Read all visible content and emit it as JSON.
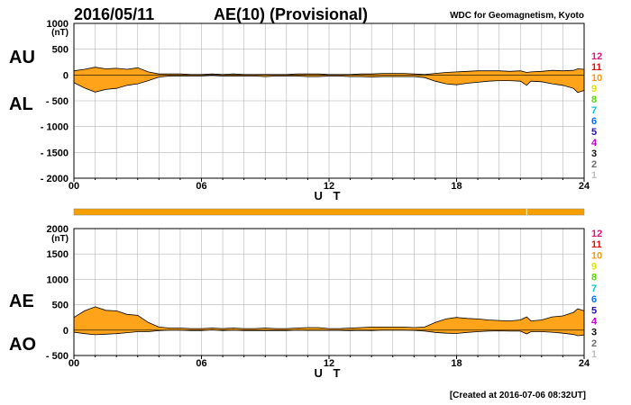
{
  "header": {
    "date": "2016/05/11",
    "title": "AE(10) (Provisional)",
    "source": "WDC for Geomagnetism, Kyoto"
  },
  "footer": {
    "created": "[Created at 2016-07-06 08:32UT]"
  },
  "colors": {
    "fill": "#ffa31a",
    "grid": "#b4b4b4",
    "bar": "#f5a000",
    "bar_marker": "#ffe6a0"
  },
  "station_counts": {
    "labels": [
      "12",
      "11",
      "10",
      "9",
      "8",
      "7",
      "6",
      "5",
      "4",
      "3",
      "2",
      "1"
    ],
    "colors": [
      "#e8107f",
      "#e01010",
      "#ff9a00",
      "#e2e200",
      "#55dd00",
      "#00c8c8",
      "#0070ff",
      "#2010b0",
      "#c000d0",
      "#101010",
      "#6e6e6e",
      "#c0c0c0"
    ]
  },
  "bar": {
    "label": "data-availability",
    "marker_hour": 21.3
  },
  "chart_data": [
    {
      "id": "au_al",
      "type": "area",
      "title": "AU / AL",
      "xlabel": "U T",
      "ylabel": "(nT)",
      "unit_label": "(nT)",
      "side_labels": [
        "AU",
        "AL"
      ],
      "xlim": [
        0,
        24
      ],
      "ylim": [
        -2000,
        1000
      ],
      "x_ticks": [
        0,
        6,
        12,
        18,
        24
      ],
      "x_tick_labels": [
        "00",
        "06",
        "12",
        "18",
        "24"
      ],
      "y_tick_labels": [
        "1000",
        "500",
        "0",
        "- 500",
        "- 1000",
        "- 1500",
        "- 2000"
      ],
      "y_tick_values": [
        1000,
        500,
        0,
        -500,
        -1000,
        -1500,
        -2000
      ],
      "x": [
        0,
        0.5,
        1,
        1.5,
        2,
        2.5,
        3,
        3.5,
        4,
        4.5,
        5,
        5.5,
        6,
        6.5,
        7,
        7.5,
        8,
        8.5,
        9,
        9.5,
        10,
        10.5,
        11,
        11.5,
        12,
        12.5,
        13,
        13.5,
        14,
        14.5,
        15,
        15.5,
        16,
        16.5,
        17,
        17.5,
        18,
        18.5,
        19,
        19.5,
        20,
        20.5,
        21,
        21.3,
        21.5,
        22,
        22.5,
        23,
        23.5,
        23.7,
        24
      ],
      "series": [
        {
          "name": "AU",
          "values": [
            80,
            110,
            150,
            120,
            130,
            110,
            140,
            60,
            20,
            20,
            20,
            10,
            10,
            20,
            10,
            20,
            10,
            10,
            10,
            10,
            10,
            20,
            20,
            20,
            10,
            10,
            10,
            20,
            20,
            30,
            30,
            30,
            20,
            10,
            30,
            50,
            60,
            70,
            80,
            80,
            80,
            70,
            80,
            50,
            60,
            70,
            90,
            80,
            90,
            120,
            110
          ]
        },
        {
          "name": "AL",
          "values": [
            -150,
            -250,
            -330,
            -280,
            -260,
            -200,
            -170,
            -110,
            -40,
            -20,
            -20,
            -20,
            -20,
            -10,
            -20,
            -20,
            -20,
            -20,
            -30,
            -20,
            -20,
            -20,
            -30,
            -30,
            -20,
            -20,
            -30,
            -30,
            -40,
            -30,
            -30,
            -30,
            -30,
            -50,
            -120,
            -170,
            -190,
            -160,
            -140,
            -120,
            -110,
            -110,
            -120,
            -200,
            -120,
            -130,
            -170,
            -200,
            -260,
            -340,
            -300
          ]
        }
      ]
    },
    {
      "id": "ae_ao",
      "type": "area",
      "title": "AE / AO",
      "xlabel": "U T",
      "ylabel": "(nT)",
      "unit_label": "(nT)",
      "side_labels": [
        "AE",
        "AO"
      ],
      "xlim": [
        0,
        24
      ],
      "ylim": [
        -500,
        2000
      ],
      "x_ticks": [
        0,
        6,
        12,
        18,
        24
      ],
      "x_tick_labels": [
        "00",
        "06",
        "12",
        "18",
        "24"
      ],
      "y_tick_labels": [
        "2000",
        "1500",
        "1000",
        "500",
        "0",
        "- 500"
      ],
      "y_tick_values": [
        2000,
        1500,
        1000,
        500,
        0,
        -500
      ],
      "x": [
        0,
        0.5,
        1,
        1.5,
        2,
        2.5,
        3,
        3.5,
        4,
        4.5,
        5,
        5.5,
        6,
        6.5,
        7,
        7.5,
        8,
        8.5,
        9,
        9.5,
        10,
        10.5,
        11,
        11.5,
        12,
        12.5,
        13,
        13.5,
        14,
        14.5,
        15,
        15.5,
        16,
        16.5,
        17,
        17.5,
        18,
        18.5,
        19,
        19.5,
        20,
        20.5,
        21,
        21.3,
        21.5,
        22,
        22.5,
        23,
        23.5,
        23.7,
        24
      ],
      "series": [
        {
          "name": "AE",
          "values": [
            250,
            380,
            460,
            390,
            380,
            310,
            290,
            150,
            60,
            40,
            40,
            30,
            30,
            40,
            30,
            40,
            30,
            30,
            40,
            30,
            30,
            40,
            50,
            50,
            30,
            30,
            40,
            50,
            60,
            60,
            60,
            60,
            50,
            60,
            150,
            220,
            250,
            230,
            220,
            200,
            190,
            180,
            200,
            260,
            180,
            200,
            260,
            280,
            350,
            420,
            380
          ]
        },
        {
          "name": "AO",
          "values": [
            -40,
            -70,
            -90,
            -80,
            -70,
            -50,
            -30,
            -30,
            -10,
            0,
            0,
            -10,
            -10,
            5,
            -10,
            0,
            -10,
            -10,
            -10,
            -10,
            -10,
            0,
            -5,
            -5,
            -5,
            -5,
            -10,
            -5,
            -10,
            0,
            0,
            0,
            -5,
            -20,
            -45,
            -60,
            -65,
            -45,
            -30,
            -20,
            -15,
            -20,
            -20,
            -75,
            -30,
            -30,
            -40,
            -60,
            -85,
            -110,
            -95
          ]
        }
      ]
    }
  ]
}
